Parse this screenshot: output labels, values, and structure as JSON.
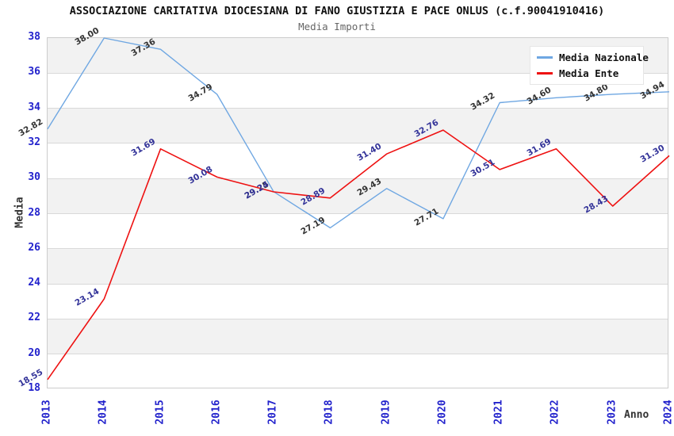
{
  "chart_data": {
    "type": "line",
    "title": "ASSOCIAZIONE CARITATIVA DIOCESIANA DI FANO GIUSTIZIA E PACE ONLUS (c.f.90041910416)",
    "subtitle": "Media Importi",
    "xlabel": "Anno",
    "ylabel": "Media",
    "categories": [
      "2013",
      "2014",
      "2015",
      "2016",
      "2017",
      "2018",
      "2019",
      "2020",
      "2021",
      "2022",
      "2023",
      "2024"
    ],
    "ylim": [
      18,
      38
    ],
    "ytick_step": 2,
    "yticks": [
      18,
      20,
      22,
      24,
      26,
      28,
      30,
      32,
      34,
      36,
      38
    ],
    "grid": true,
    "banded_background": true,
    "legend_position": "top-right",
    "series": [
      {
        "name": "Media Nazionale",
        "color": "#6fa7e2",
        "label_color": "#333333",
        "values": [
          32.82,
          38.0,
          37.36,
          34.79,
          29.25,
          27.19,
          29.43,
          27.71,
          34.32,
          34.6,
          34.8,
          34.94
        ],
        "labels": [
          "32.82",
          "38.00",
          "37.36",
          "34.79",
          "29.25",
          "27.19",
          "29.43",
          "27.71",
          "34.32",
          "34.60",
          "34.80",
          "34.94"
        ]
      },
      {
        "name": "Media Ente",
        "color": "#ee1111",
        "label_color": "#333399",
        "values": [
          18.55,
          23.14,
          31.69,
          30.08,
          29.24,
          28.89,
          31.4,
          32.76,
          30.51,
          31.69,
          28.43,
          31.3
        ],
        "labels": [
          "18.55",
          "23.14",
          "31.69",
          "30.08",
          "29.24",
          "28.89",
          "31.40",
          "32.76",
          "30.51",
          "31.69",
          "28.43",
          "31.30"
        ]
      }
    ]
  },
  "colors": {
    "axis_tick_text": "#2222cc",
    "gridline": "#d9d9d9",
    "band_gray": "#f2f2f2",
    "plot_border": "#cccccc",
    "title_text": "#111111",
    "subtitle_text": "#666666"
  }
}
